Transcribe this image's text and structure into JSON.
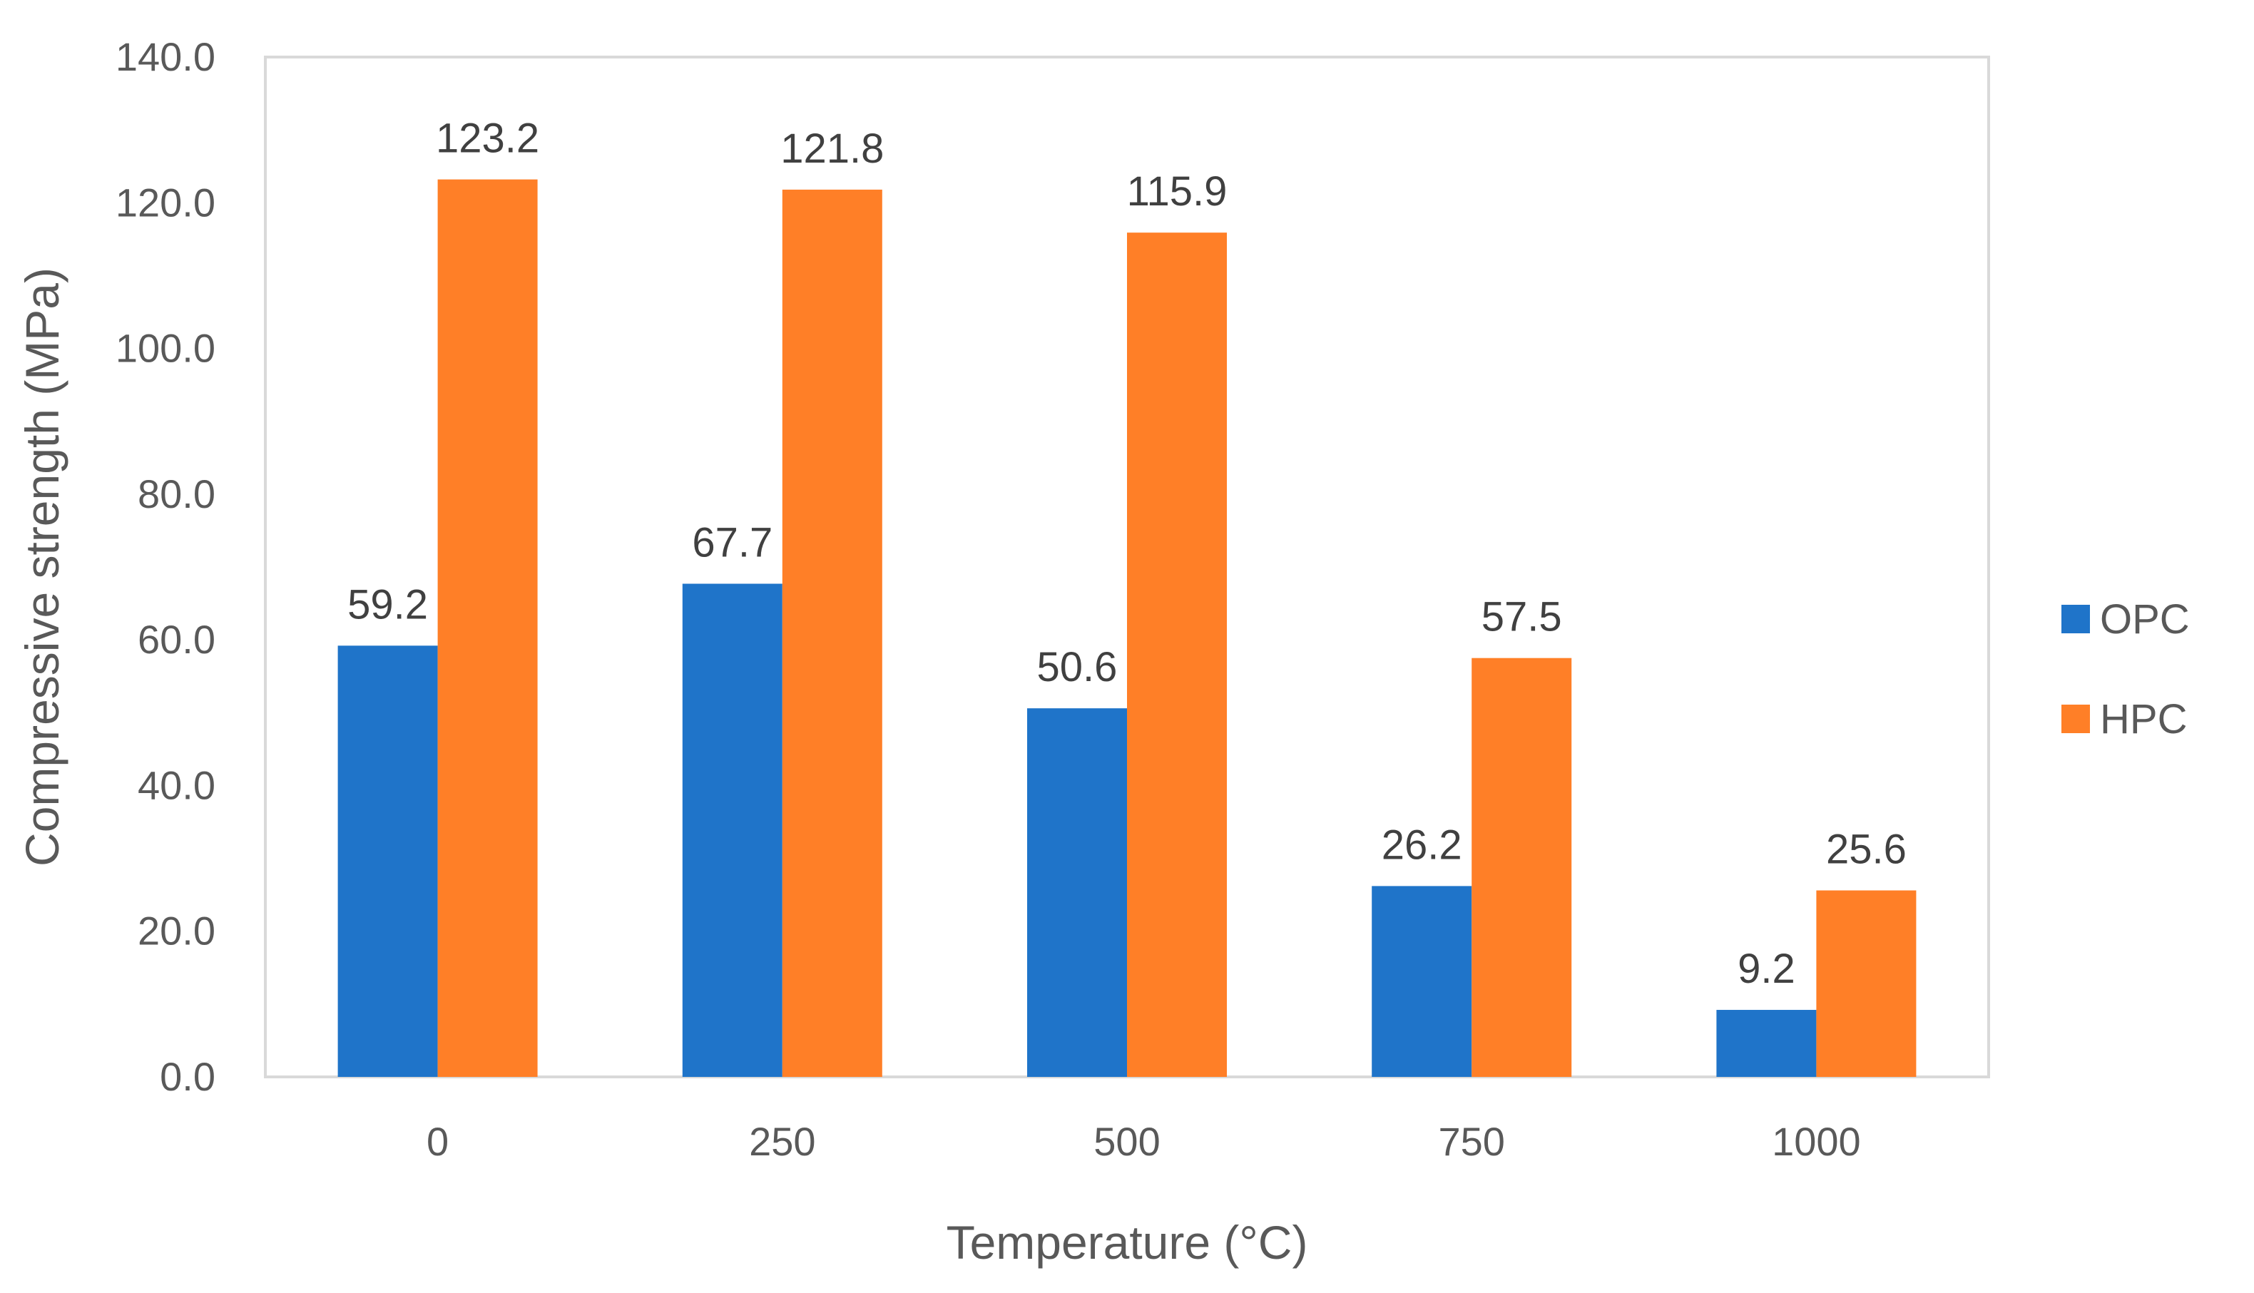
{
  "chart_data": {
    "type": "bar",
    "title": "",
    "xlabel": "Temperature (°C)",
    "ylabel": "Compressive strength (MPa)",
    "categories": [
      "0",
      "250",
      "500",
      "750",
      "1000"
    ],
    "series": [
      {
        "name": "OPC",
        "color": "#1f74c9",
        "values": [
          59.2,
          67.7,
          50.6,
          26.2,
          9.2
        ],
        "labels": [
          "59.2",
          "67.7",
          "50.6",
          "26.2",
          "9.2"
        ]
      },
      {
        "name": "HPC",
        "color": "#ff7f27",
        "values": [
          123.2,
          121.8,
          115.9,
          57.5,
          25.6
        ],
        "labels": [
          "123.2",
          "121.8",
          "115.9",
          "57.5",
          "25.6"
        ]
      }
    ],
    "ylim": [
      0,
      140
    ],
    "yticks": [
      "0.0",
      "20.0",
      "40.0",
      "60.0",
      "80.0",
      "100.0",
      "120.0",
      "140.0"
    ],
    "grid": false,
    "legend": "right"
  }
}
